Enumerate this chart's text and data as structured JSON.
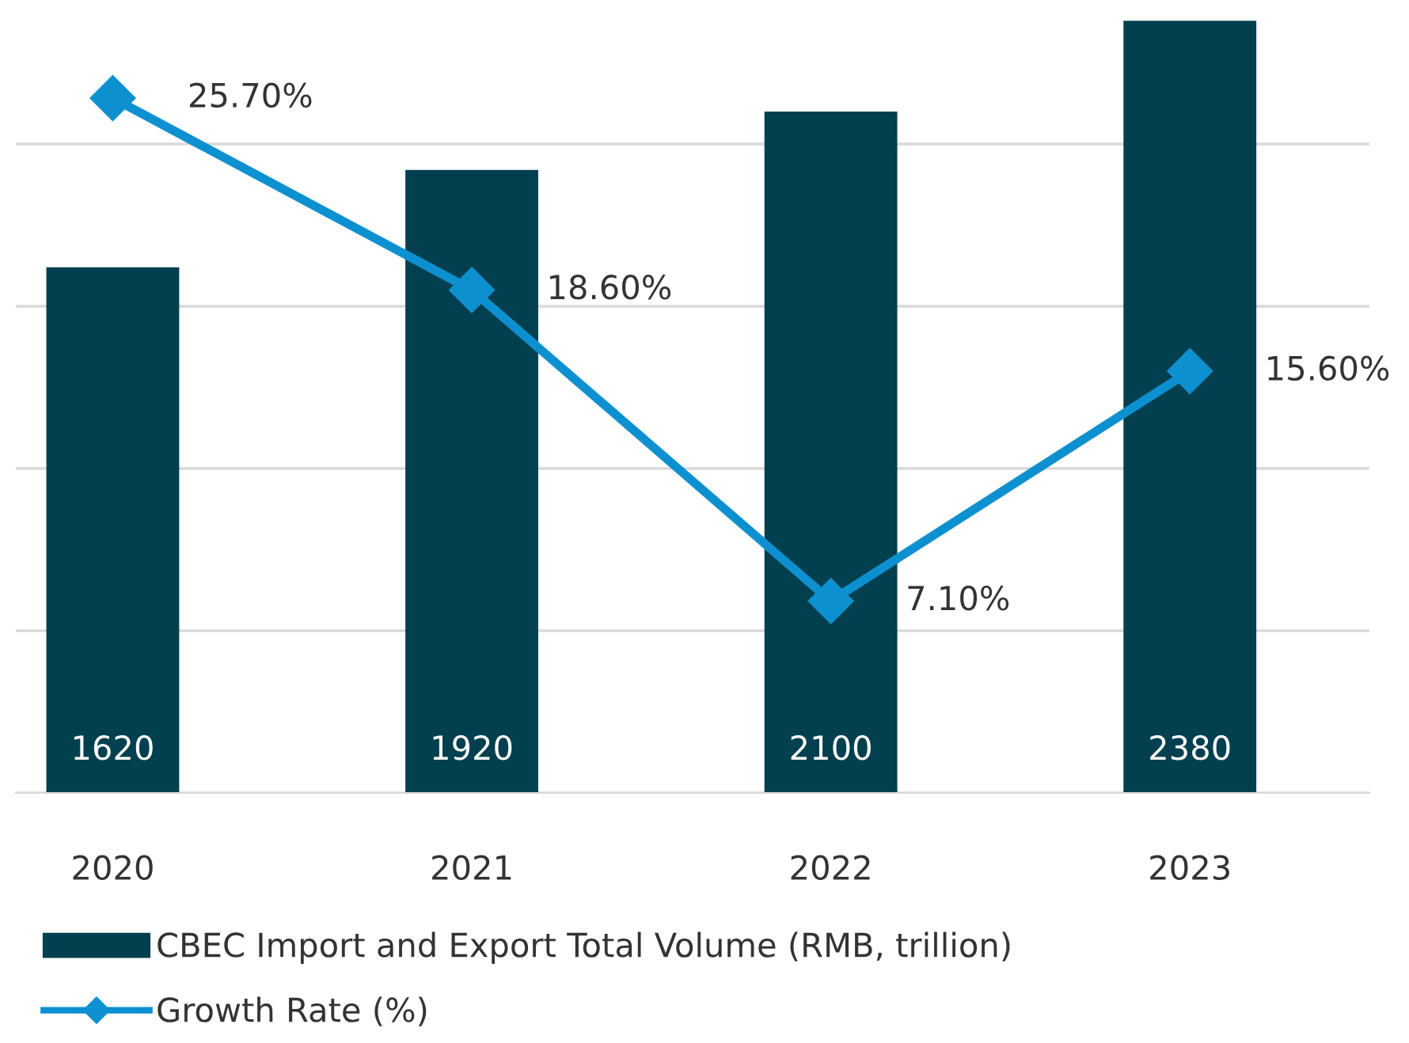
{
  "chart_data": {
    "type": "bar",
    "categories": [
      "2020",
      "2021",
      "2022",
      "2023"
    ],
    "series": [
      {
        "name": "CBEC Import and Export Total Volume (RMB, trillion)",
        "type": "bar",
        "color": "#02404f",
        "values": [
          1620,
          1920,
          2100,
          2380
        ],
        "data_labels": true
      },
      {
        "name": "Growth Rate (%)",
        "type": "line",
        "axis": "y2",
        "color": "#0d90d0",
        "values": [
          25.7,
          18.6,
          7.1,
          15.6
        ],
        "value_labels": [
          "25.70%",
          "18.60%",
          "7.10%",
          "15.60%"
        ],
        "marker": "diamond",
        "line_style": "solid"
      }
    ],
    "ylim": [
      0,
      2400
    ],
    "yticks": [
      {
        "value": 0,
        "label": null
      },
      {
        "value": 500,
        "label": null
      },
      {
        "value": 1000,
        "label": null
      },
      {
        "value": 1500,
        "label": null
      },
      {
        "value": 2000,
        "label": null
      }
    ],
    "y2lim": [
      0,
      28.8
    ],
    "grid": "y",
    "tick_labels": "x",
    "legend": "bottom"
  }
}
